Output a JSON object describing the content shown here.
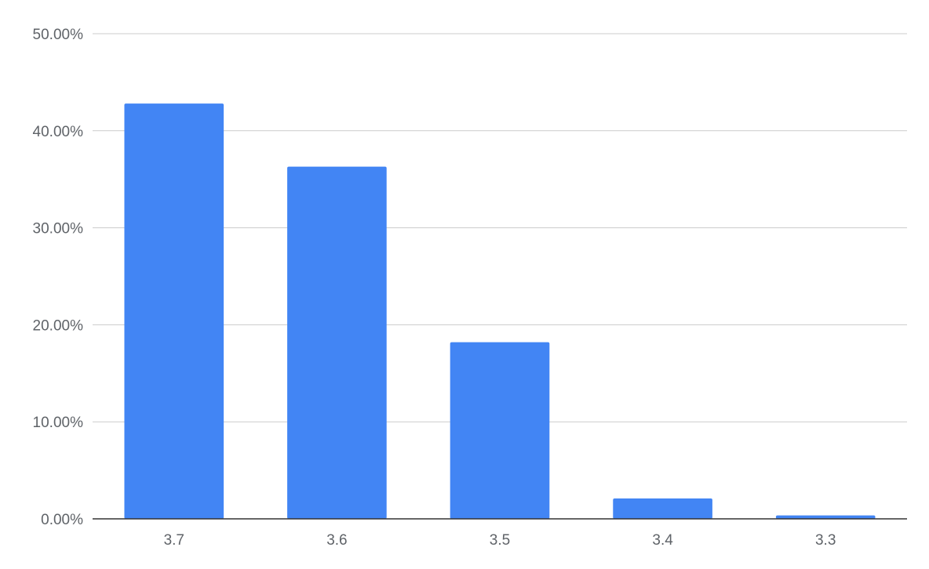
{
  "chart_data": {
    "type": "bar",
    "title": "",
    "xlabel": "",
    "ylabel": "",
    "categories": [
      "3.7",
      "3.6",
      "3.5",
      "3.4",
      "3.3"
    ],
    "series": [
      {
        "values": [
          42.8,
          36.3,
          18.2,
          2.1,
          0.35
        ],
        "color": "#4285f4"
      }
    ],
    "ylim": [
      0,
      50
    ],
    "y_ticks": [
      0,
      10,
      20,
      30,
      40,
      50
    ],
    "y_tick_labels": [
      "0.00%",
      "10.00%",
      "20.00%",
      "30.00%",
      "40.00%",
      "50.00%"
    ],
    "grid": true,
    "legend": "none"
  }
}
